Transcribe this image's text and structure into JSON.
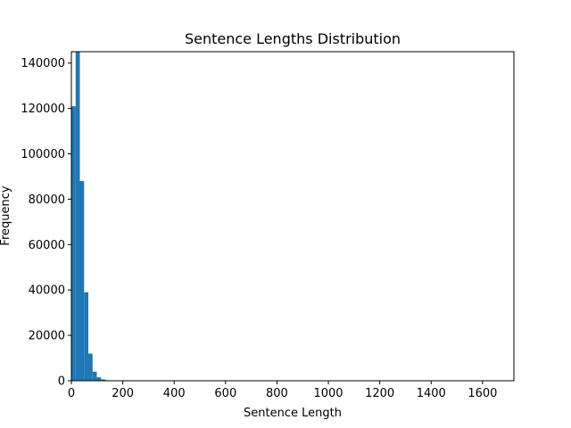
{
  "chart_data": {
    "type": "bar",
    "title": "Sentence Lengths Distribution",
    "xlabel": "Sentence Length",
    "ylabel": "Frequency",
    "xlim": [
      0,
      1722
    ],
    "ylim": [
      0,
      145000
    ],
    "grid": false,
    "legend": "none",
    "bar_color": "#1f77b4",
    "bin_width": 16.5,
    "bins_start": 0,
    "values": [
      121000,
      145000,
      88000,
      39000,
      12000,
      4000,
      1500,
      600,
      250,
      120,
      60,
      30,
      15,
      8,
      5,
      3,
      2,
      1,
      1,
      1
    ],
    "xticks": [
      {
        "value": 0,
        "label": "0"
      },
      {
        "value": 200,
        "label": "200"
      },
      {
        "value": 400,
        "label": "400"
      },
      {
        "value": 600,
        "label": "600"
      },
      {
        "value": 800,
        "label": "800"
      },
      {
        "value": 1000,
        "label": "1000"
      },
      {
        "value": 1200,
        "label": "1200"
      },
      {
        "value": 1400,
        "label": "1400"
      },
      {
        "value": 1600,
        "label": "1600"
      }
    ],
    "yticks": [
      {
        "value": 0,
        "label": "0"
      },
      {
        "value": 20000,
        "label": "20000"
      },
      {
        "value": 40000,
        "label": "40000"
      },
      {
        "value": 60000,
        "label": "60000"
      },
      {
        "value": 80000,
        "label": "80000"
      },
      {
        "value": 100000,
        "label": "100000"
      },
      {
        "value": 120000,
        "label": "120000"
      },
      {
        "value": 140000,
        "label": "140000"
      }
    ]
  }
}
